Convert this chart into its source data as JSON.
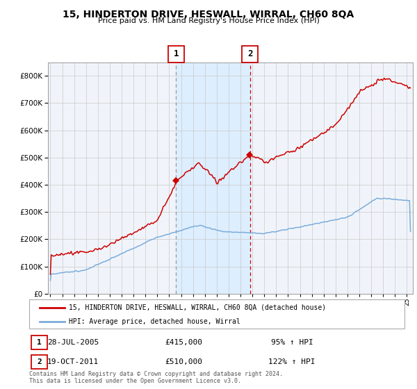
{
  "title": "15, HINDERTON DRIVE, HESWALL, WIRRAL, CH60 8QA",
  "subtitle": "Price paid vs. HM Land Registry's House Price Index (HPI)",
  "legend_label_red": "15, HINDERTON DRIVE, HESWALL, WIRRAL, CH60 8QA (detached house)",
  "legend_label_blue": "HPI: Average price, detached house, Wirral",
  "annotation1_label": "1",
  "annotation1_date": "28-JUL-2005",
  "annotation1_price": "£415,000",
  "annotation1_hpi": "95% ↑ HPI",
  "annotation2_label": "2",
  "annotation2_date": "19-OCT-2011",
  "annotation2_price": "£510,000",
  "annotation2_hpi": "122% ↑ HPI",
  "footnote": "Contains HM Land Registry data © Crown copyright and database right 2024.\nThis data is licensed under the Open Government Licence v3.0.",
  "red_color": "#cc0000",
  "blue_color": "#7aacdc",
  "shade_color": "#ddeeff",
  "background_color": "#ffffff",
  "plot_bg_color": "#f0f4fa",
  "grid_color": "#cccccc",
  "vline1_color": "#999999",
  "vline2_color": "#cc0000",
  "annotation_box_color": "#cc0000",
  "ylim": [
    0,
    850000
  ],
  "yticks": [
    0,
    100000,
    200000,
    300000,
    400000,
    500000,
    600000,
    700000,
    800000
  ],
  "year_start": 1995,
  "year_end": 2025,
  "purchase1_year": 2005.57,
  "purchase1_value": 415000,
  "purchase2_year": 2011.8,
  "purchase2_value": 510000
}
